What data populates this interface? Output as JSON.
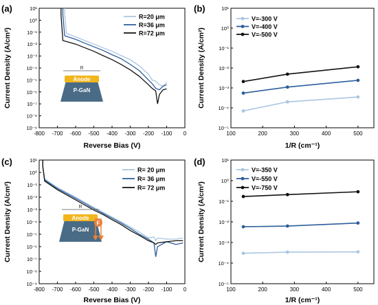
{
  "panels": [
    {
      "id": "a",
      "label": "(a)",
      "xlabel": "Reverse Bias  (V)",
      "ylabel": "Current Density (A/cm²)",
      "xticks": [
        "-800",
        "-700",
        "-600",
        "-500",
        "-400",
        "-300",
        "-200",
        "-100",
        "0"
      ],
      "yticks": [
        "10⁻⁹",
        "10⁻⁸",
        "10⁻⁷",
        "10⁻⁶",
        "10⁻⁵",
        "10⁻⁴",
        "10⁻³",
        "10⁻²",
        "10⁻¹",
        "10⁰",
        "10¹"
      ],
      "legend": [
        "R=20 μm",
        "R=36 μm",
        "R=72 μm"
      ],
      "inset": {
        "dimension_label": "R",
        "anode_label": "Anode",
        "base_label": "P-GaN"
      }
    },
    {
      "id": "b",
      "label": "(b)",
      "xlabel": "1/R (cm⁻¹)",
      "ylabel": "Current Density (A/cm²)",
      "xticks": [
        "100",
        "200",
        "300",
        "400",
        "500"
      ],
      "yticks": [
        "10⁻⁵",
        "10⁻⁴",
        "10⁻³",
        "10⁻²",
        "10⁻¹",
        "10⁰",
        "10¹"
      ],
      "legend": [
        "V=-300 V",
        "V=-400 V",
        "V=-500 V"
      ]
    },
    {
      "id": "c",
      "label": "(c)",
      "xlabel": "Reverse Bias (V)",
      "ylabel": "Current Density (A/cm²)",
      "xticks": [
        "-800",
        "-700",
        "-600",
        "-500",
        "-400",
        "-300",
        "-200",
        "-100",
        "0"
      ],
      "yticks": [
        "10⁻⁹",
        "10⁻⁸",
        "10⁻⁷",
        "10⁻⁶",
        "10⁻⁵",
        "10⁻⁴",
        "10⁻³",
        "10⁻²",
        "10⁻¹",
        "10⁰",
        "10¹"
      ],
      "legend": [
        "R= 20 μm",
        "R= 36 μm",
        "R= 72 μm"
      ],
      "inset": {
        "dimension_label": "R",
        "anode_label": "Anode",
        "base_label": "P-GaN",
        "badge_label": "F"
      }
    },
    {
      "id": "d",
      "label": "(d)",
      "xlabel": "1/R (cm⁻¹)",
      "ylabel": "Current Density (A/cm²)",
      "xticks": [
        "100",
        "200",
        "300",
        "400",
        "500"
      ],
      "yticks": [
        "10⁻⁵",
        "10⁻⁴",
        "10⁻³",
        "10⁻²",
        "10⁻¹",
        "10⁰",
        "10¹"
      ],
      "legend": [
        "V=-350 V",
        "V=-550 V",
        "V=-750 V"
      ]
    }
  ],
  "colors": {
    "light": "#a9c6e2",
    "mid": "#2c5d99",
    "dark": "#111111",
    "inset_anode": "#f2b51c",
    "inset_base": "#4a6b86",
    "inset_arrow": "#e8823a"
  },
  "chart_data": [
    {
      "panel": "a",
      "type": "line",
      "title": "",
      "xlabel": "Reverse Bias  (V)",
      "ylabel": "Current Density (A/cm²)",
      "xlim": [
        -800,
        0
      ],
      "ylim": [
        1e-09,
        10
      ],
      "yscale": "log",
      "legend_position": "top-right",
      "series": [
        {
          "name": "R=20 μm",
          "color": "#a9c6e2",
          "x": [
            -660,
            -650,
            -600,
            -550,
            -500,
            -450,
            -400,
            -350,
            -300,
            -250,
            -200,
            -180,
            -160,
            -140,
            -120,
            -100
          ],
          "y": [
            3,
            0.08,
            0.04,
            0.02,
            0.01,
            0.005,
            0.0025,
            0.0011,
            0.0005,
            0.00015,
            3e-05,
            1e-05,
            8e-06,
            4e-06,
            3e-06,
            6e-06
          ]
        },
        {
          "name": "R=36 μm",
          "color": "#2c5d99",
          "x": [
            -670,
            -660,
            -600,
            -550,
            -500,
            -450,
            -400,
            -350,
            -300,
            -250,
            -200,
            -180,
            -160,
            -140,
            -120,
            -100
          ],
          "y": [
            3,
            0.05,
            0.025,
            0.012,
            0.006,
            0.003,
            0.0013,
            0.0006,
            0.0002,
            6e-05,
            1e-05,
            5e-06,
            2e-06,
            1.5e-06,
            3e-06,
            4e-06
          ]
        },
        {
          "name": "R=72 μm",
          "color": "#111111",
          "x": [
            -680,
            -670,
            -600,
            -550,
            -500,
            -450,
            -400,
            -350,
            -300,
            -250,
            -200,
            -180,
            -160,
            -150,
            -140,
            -120,
            -100
          ],
          "y": [
            3,
            0.02,
            0.01,
            0.005,
            0.0025,
            0.0011,
            0.0005,
            0.0002,
            7e-05,
            2e-05,
            4e-06,
            2e-06,
            1.2e-06,
            1e-07,
            6e-07,
            1.5e-06,
            1.8e-06
          ]
        }
      ]
    },
    {
      "panel": "b",
      "type": "line",
      "title": "",
      "xlabel": "1/R (cm⁻¹)",
      "ylabel": "Current Density (A/cm²)",
      "xlim": [
        100,
        550
      ],
      "ylim": [
        1e-05,
        10
      ],
      "yscale": "log",
      "legend_position": "top-left",
      "x": [
        139,
        278,
        500
      ],
      "series": [
        {
          "name": "V=-300 V",
          "color": "#a9c6e2",
          "values": [
            7e-05,
            0.0002,
            0.00035
          ]
        },
        {
          "name": "V=-400 V",
          "color": "#2c5d99",
          "values": [
            0.00055,
            0.0011,
            0.0024
          ]
        },
        {
          "name": "V=-500 V",
          "color": "#111111",
          "values": [
            0.0021,
            0.0049,
            0.0115
          ]
        }
      ]
    },
    {
      "panel": "c",
      "type": "line",
      "title": "",
      "xlabel": "Reverse Bias (V)",
      "ylabel": "Current Density (A/cm²)",
      "xlim": [
        -800,
        0
      ],
      "ylim": [
        1e-09,
        10
      ],
      "yscale": "log",
      "legend_position": "top-right",
      "series": [
        {
          "name": "R= 20 μm",
          "color": "#a9c6e2",
          "x": [
            -780,
            -770,
            -700,
            -600,
            -500,
            -450,
            -400,
            -350,
            -300,
            -250,
            -200,
            -170,
            -160,
            -150,
            -100,
            -50,
            -10
          ],
          "y": [
            3,
            0.3,
            0.06,
            0.01,
            0.0015,
            0.0006,
            0.00025,
            0.0001,
            4e-05,
            1.5e-05,
            5e-06,
            6e-06,
            3e-06,
            5e-06,
            4e-06,
            4e-06,
            5e-06
          ]
        },
        {
          "name": "R= 36 μm",
          "color": "#2c5d99",
          "x": [
            -780,
            -770,
            -700,
            -600,
            -500,
            -450,
            -400,
            -350,
            -300,
            -250,
            -200,
            -170,
            -160,
            -150,
            -100,
            -50,
            -10
          ],
          "y": [
            3,
            0.25,
            0.05,
            0.008,
            0.0012,
            0.0005,
            0.0002,
            8e-05,
            3e-05,
            1e-05,
            4e-06,
            2e-06,
            1.5e-07,
            1e-06,
            2.5e-06,
            1.5e-06,
            2e-06
          ]
        },
        {
          "name": "R= 72 μm",
          "color": "#111111",
          "x": [
            -780,
            -770,
            -700,
            -600,
            -500,
            -450,
            -400,
            -350,
            -300,
            -250,
            -200,
            -170,
            -160,
            -150,
            -100,
            -50,
            -10
          ],
          "y": [
            3,
            0.2,
            0.04,
            0.006,
            0.0009,
            0.0004,
            0.00015,
            6e-05,
            2e-05,
            8e-06,
            3e-06,
            2e-06,
            1.5e-06,
            2e-06,
            2.5e-06,
            3e-06,
            3e-06
          ]
        }
      ]
    },
    {
      "panel": "d",
      "type": "line",
      "title": "",
      "xlabel": "1/R (cm⁻¹)",
      "ylabel": "Current Density (A/cm²)",
      "xlim": [
        100,
        550
      ],
      "ylim": [
        1e-05,
        10
      ],
      "yscale": "log",
      "legend_position": "top-left",
      "x": [
        139,
        278,
        500
      ],
      "series": [
        {
          "name": "V=-350 V",
          "color": "#a9c6e2",
          "values": [
            0.0003,
            0.00034,
            0.00035
          ]
        },
        {
          "name": "V=-550 V",
          "color": "#2c5d99",
          "values": [
            0.0058,
            0.0063,
            0.0088
          ]
        },
        {
          "name": "V=-750 V",
          "color": "#111111",
          "values": [
            0.17,
            0.21,
            0.29
          ]
        }
      ]
    }
  ]
}
